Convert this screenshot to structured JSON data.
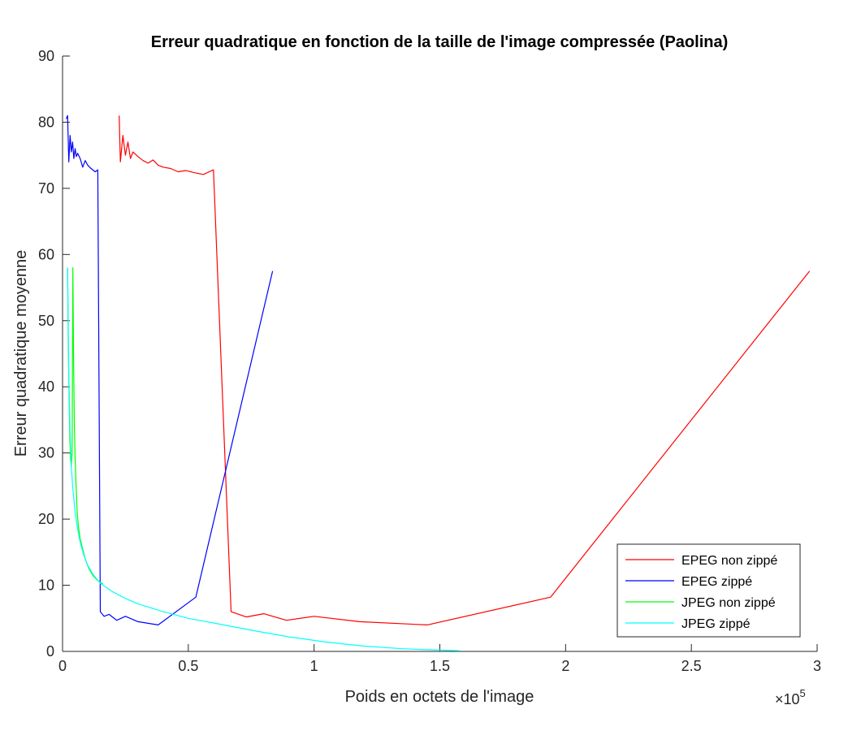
{
  "chart_data": {
    "type": "line",
    "title": "Erreur quadratique en fonction de la taille de l'image compressée (Paolina)",
    "xlabel": "Poids en octets de l'image",
    "ylabel": "Erreur quadratique moyenne",
    "x_exponent_base": "×10",
    "x_exponent_power": "5",
    "x_multiplier": 100000,
    "xlim": [
      0,
      300000
    ],
    "ylim": [
      0,
      90
    ],
    "x_ticks": [
      0,
      0.5,
      1,
      1.5,
      2,
      2.5,
      3
    ],
    "x_tick_labels": [
      "0",
      "0.5",
      "1",
      "1.5",
      "2",
      "2.5",
      "3"
    ],
    "y_ticks": [
      0,
      10,
      20,
      30,
      40,
      50,
      60,
      70,
      80,
      90
    ],
    "y_tick_labels": [
      "0",
      "10",
      "20",
      "30",
      "40",
      "50",
      "60",
      "70",
      "80",
      "90"
    ],
    "grid": false,
    "legend_position": "bottom-right",
    "series": [
      {
        "name": "EPEG non zippé",
        "color": "#ff0000",
        "points": [
          [
            22500,
            81
          ],
          [
            23000,
            74
          ],
          [
            24000,
            78
          ],
          [
            25000,
            75
          ],
          [
            26000,
            77
          ],
          [
            27000,
            74.5
          ],
          [
            28000,
            75.5
          ],
          [
            30000,
            74.8
          ],
          [
            32000,
            74.2
          ],
          [
            34000,
            73.8
          ],
          [
            36000,
            74.3
          ],
          [
            38000,
            73.5
          ],
          [
            40000,
            73.2
          ],
          [
            43000,
            73
          ],
          [
            46000,
            72.5
          ],
          [
            49000,
            72.7
          ],
          [
            52000,
            72.4
          ],
          [
            56000,
            72.1
          ],
          [
            60000,
            72.8
          ],
          [
            67000,
            6
          ],
          [
            73000,
            5.2
          ],
          [
            80000,
            5.7
          ],
          [
            89000,
            4.7
          ],
          [
            100000,
            5.3
          ],
          [
            118000,
            4.5
          ],
          [
            145000,
            4
          ],
          [
            194000,
            8.2
          ],
          [
            297000,
            57.5
          ]
        ]
      },
      {
        "name": "EPEG zippé",
        "color": "#0000ff",
        "points": [
          [
            1500,
            80.5
          ],
          [
            2000,
            81
          ],
          [
            2500,
            74
          ],
          [
            3000,
            78
          ],
          [
            3500,
            75.5
          ],
          [
            4000,
            77
          ],
          [
            4500,
            74.5
          ],
          [
            5000,
            76
          ],
          [
            5500,
            74.8
          ],
          [
            6000,
            75.3
          ],
          [
            7000,
            74.5
          ],
          [
            8000,
            73.2
          ],
          [
            9000,
            74.2
          ],
          [
            10000,
            73.5
          ],
          [
            11000,
            73.1
          ],
          [
            12000,
            72.8
          ],
          [
            13000,
            72.5
          ],
          [
            14000,
            72.8
          ],
          [
            15000,
            6
          ],
          [
            16500,
            5.3
          ],
          [
            18500,
            5.6
          ],
          [
            21500,
            4.7
          ],
          [
            25000,
            5.3
          ],
          [
            30000,
            4.5
          ],
          [
            38000,
            4
          ],
          [
            53000,
            8.2
          ],
          [
            83500,
            57.5
          ]
        ]
      },
      {
        "name": "JPEG non zippé",
        "color": "#00ff00",
        "points": [
          [
            2000,
            58
          ],
          [
            2300,
            46
          ],
          [
            2600,
            38
          ],
          [
            2900,
            32
          ],
          [
            3200,
            29
          ],
          [
            3500,
            28
          ],
          [
            3800,
            30
          ],
          [
            4100,
            58
          ],
          [
            4400,
            44
          ],
          [
            4700,
            34
          ],
          [
            5000,
            29
          ],
          [
            5400,
            25
          ],
          [
            5800,
            21
          ],
          [
            6300,
            19
          ],
          [
            7000,
            17
          ],
          [
            8000,
            15.5
          ],
          [
            9000,
            14
          ],
          [
            10500,
            12.5
          ],
          [
            12000,
            11.5
          ],
          [
            14000,
            10.7
          ],
          [
            16000,
            10.2
          ]
        ]
      },
      {
        "name": "JPEG zippé",
        "color": "#00ffff",
        "points": [
          [
            2000,
            58
          ],
          [
            2500,
            42
          ],
          [
            3000,
            33
          ],
          [
            3500,
            28
          ],
          [
            4000,
            25
          ],
          [
            5000,
            21
          ],
          [
            6000,
            18.5
          ],
          [
            7000,
            16.5
          ],
          [
            8500,
            14.5
          ],
          [
            10000,
            13
          ],
          [
            12000,
            11.7
          ],
          [
            15000,
            10.3
          ],
          [
            20000,
            9
          ],
          [
            25000,
            8
          ],
          [
            30000,
            7.2
          ],
          [
            40000,
            6
          ],
          [
            50000,
            5
          ],
          [
            60000,
            4.3
          ],
          [
            75000,
            3.2
          ],
          [
            90000,
            2.2
          ],
          [
            105000,
            1.4
          ],
          [
            120000,
            0.8
          ],
          [
            135000,
            0.4
          ],
          [
            150000,
            0.2
          ],
          [
            158000,
            0.1
          ]
        ]
      }
    ]
  }
}
